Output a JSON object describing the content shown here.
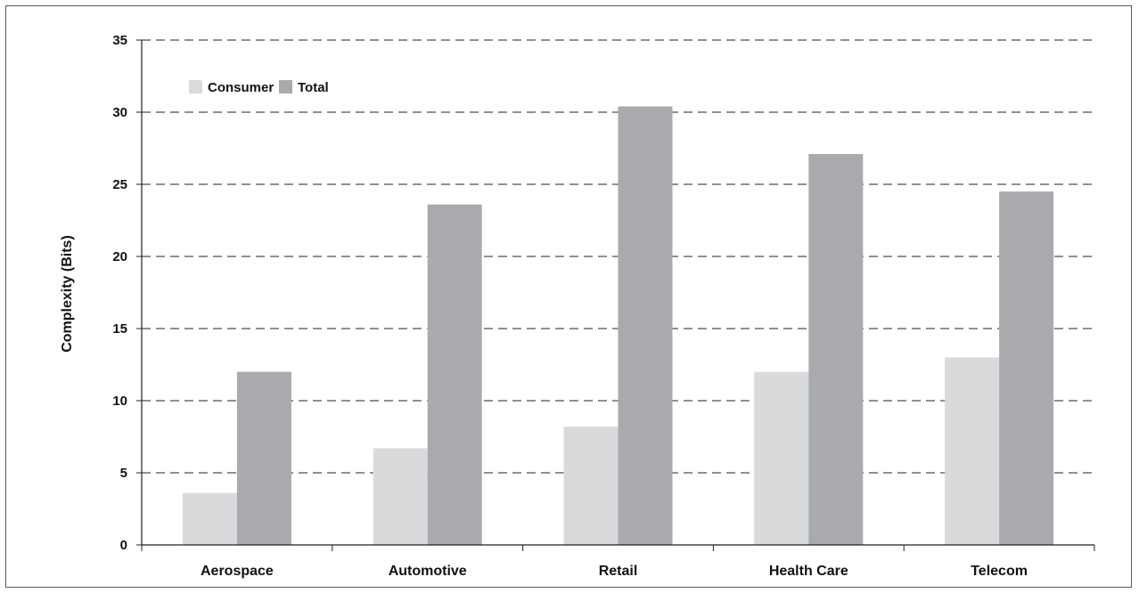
{
  "chart_data": {
    "type": "bar",
    "title": "",
    "xlabel": "",
    "ylabel": "Complexity (Bits)",
    "categories": [
      "Aerospace",
      "Automotive",
      "Retail",
      "Health Care",
      "Telecom"
    ],
    "series": [
      {
        "name": "Consumer",
        "color": "#d9dadc",
        "values": [
          3.6,
          6.7,
          8.2,
          12.0,
          13.0
        ]
      },
      {
        "name": "Total",
        "color": "#a8aaad",
        "values": [
          12.0,
          23.6,
          30.4,
          27.1,
          24.5
        ]
      }
    ],
    "ylim": [
      0,
      35
    ],
    "yticks": [
      0,
      5,
      10,
      15,
      20,
      25,
      30,
      35
    ],
    "grid": true,
    "grid_style": "dashed",
    "legend_position": "top-left"
  }
}
